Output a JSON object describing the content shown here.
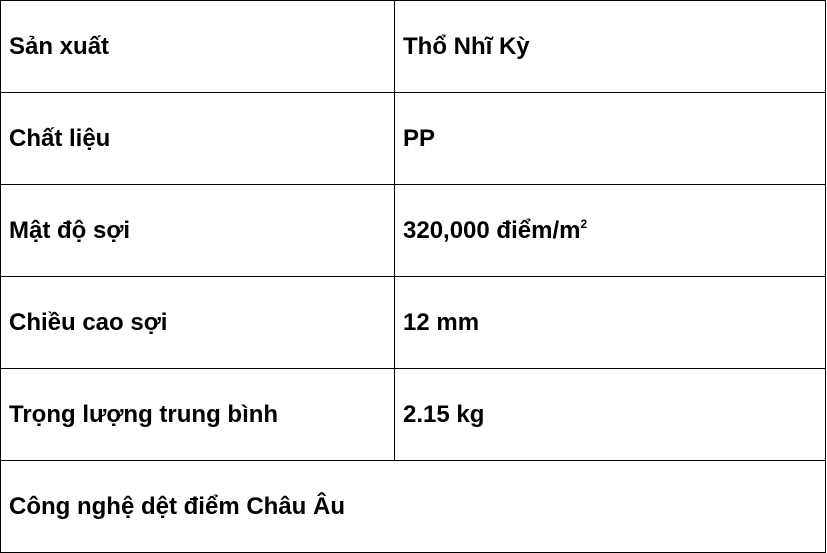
{
  "rows": [
    {
      "label": "Sản xuất",
      "value": "Thổ Nhĩ Kỳ"
    },
    {
      "label": "Chất liệu",
      "value": "PP"
    },
    {
      "label": "Mật độ sợi",
      "value": "320,000 điểm/m",
      "value_sup": "2"
    },
    {
      "label": "Chiều cao sợi",
      "value": "12 mm"
    },
    {
      "label": "Trọng lượng trung bình",
      "value": "2.15 kg"
    }
  ],
  "footer": "Công nghệ dệt điểm Châu Âu"
}
